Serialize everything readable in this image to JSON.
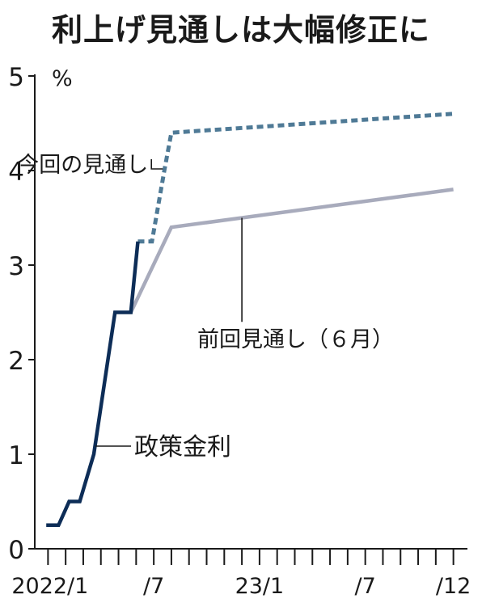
{
  "chart_data": {
    "type": "line",
    "title": "利上げ見通しは大幅修正に",
    "unit_label": "%",
    "ylim": [
      0,
      5
    ],
    "yticks": [
      0,
      1,
      2,
      3,
      4,
      5
    ],
    "x_tick_labels": [
      {
        "month": 0,
        "label": "2022/1"
      },
      {
        "month": 6,
        "label": "/7"
      },
      {
        "month": 12,
        "label": "23/1"
      },
      {
        "month": 18,
        "label": "/7"
      },
      {
        "month": 23,
        "label": "/12"
      }
    ],
    "x_minor_ticks": [
      0,
      1,
      2,
      3,
      4,
      5,
      6,
      7,
      8,
      9,
      10,
      11,
      12,
      13,
      14,
      15,
      16,
      17,
      18,
      19,
      20,
      21,
      22,
      23
    ],
    "xlim": [
      -0.2,
      23.2
    ],
    "series": [
      {
        "name": "政策金利",
        "color": "#0d2d57",
        "style": "solid",
        "points": [
          [
            -0.1,
            0.25
          ],
          [
            0.6,
            0.25
          ],
          [
            1.2,
            0.5
          ],
          [
            1.8,
            0.5
          ],
          [
            2.6,
            1.0
          ],
          [
            3.8,
            2.5
          ],
          [
            4.7,
            2.5
          ],
          [
            5.1,
            3.25
          ]
        ]
      },
      {
        "name": "今回の見通し",
        "color": "#4f7a96",
        "style": "dashed",
        "points": [
          [
            5.1,
            3.25
          ],
          [
            5.9,
            3.25
          ],
          [
            6.6,
            4.0
          ],
          [
            7.0,
            4.4
          ],
          [
            23.0,
            4.6
          ]
        ]
      },
      {
        "name": "前回見通し（６月）",
        "color": "#a8abbc",
        "style": "solid",
        "points": [
          [
            4.7,
            2.5
          ],
          [
            7.0,
            3.4
          ],
          [
            23.0,
            3.8
          ]
        ]
      }
    ],
    "annotations": [
      {
        "text": "今回の見通し",
        "series": 1
      },
      {
        "text": "前回見通し（６月）",
        "series": 2
      },
      {
        "text": "政策金利",
        "series": 0
      }
    ],
    "grid": false,
    "legend": "none"
  }
}
